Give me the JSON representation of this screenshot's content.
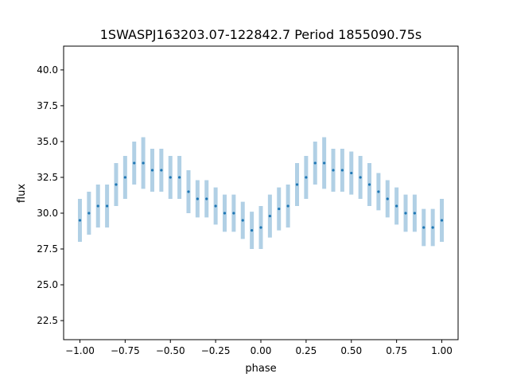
{
  "chart_data": {
    "type": "scatter",
    "title": "1SWASPJ163203.07-122842.7 Period 1855090.75s",
    "xlabel": "phase",
    "ylabel": "flux",
    "xlim": [
      -1.09,
      1.09
    ],
    "ylim": [
      21.17,
      41.66
    ],
    "xticks": [
      -1.0,
      -0.75,
      -0.5,
      -0.25,
      0.0,
      0.25,
      0.5,
      0.75,
      1.0
    ],
    "xtick_labels": [
      "−1.00",
      "−0.75",
      "−0.50",
      "−0.25",
      "0.00",
      "0.25",
      "0.50",
      "0.75",
      "1.00"
    ],
    "yticks": [
      22.5,
      25.0,
      27.5,
      30.0,
      32.5,
      35.0,
      37.5,
      40.0
    ],
    "ytick_labels": [
      "22.5",
      "25.0",
      "27.5",
      "30.0",
      "32.5",
      "35.0",
      "37.5",
      "40.0"
    ],
    "grid": false,
    "color": "#1f77b4",
    "series": [
      {
        "name": "flux",
        "x": [
          -1.0,
          -0.95,
          -0.9,
          -0.85,
          -0.8,
          -0.75,
          -0.7,
          -0.65,
          -0.6,
          -0.55,
          -0.5,
          -0.45,
          -0.4,
          -0.35,
          -0.3,
          -0.25,
          -0.2,
          -0.15,
          -0.1,
          -0.05,
          0.0,
          0.05,
          0.1,
          0.15,
          0.2,
          0.25,
          0.3,
          0.35,
          0.4,
          0.45,
          0.5,
          0.55,
          0.6,
          0.65,
          0.7,
          0.75,
          0.8,
          0.85,
          0.9,
          0.95,
          1.0
        ],
        "y": [
          29.5,
          30.0,
          30.5,
          30.5,
          32.0,
          32.5,
          33.5,
          33.5,
          33.0,
          33.0,
          32.5,
          32.5,
          31.5,
          31.0,
          31.0,
          30.5,
          30.0,
          30.0,
          29.5,
          28.8,
          29.0,
          29.8,
          30.3,
          30.5,
          32.0,
          32.5,
          33.5,
          33.5,
          33.0,
          33.0,
          32.8,
          32.5,
          32.0,
          31.5,
          31.0,
          30.5,
          30.0,
          30.0,
          29.0,
          29.0,
          29.5
        ],
        "spread": [
          1.5,
          1.5,
          1.5,
          1.5,
          1.5,
          1.5,
          1.5,
          1.8,
          1.5,
          1.5,
          1.5,
          1.5,
          1.5,
          1.3,
          1.3,
          1.3,
          1.3,
          1.3,
          1.3,
          1.3,
          1.5,
          1.5,
          1.5,
          1.5,
          1.5,
          1.5,
          1.5,
          1.8,
          1.5,
          1.5,
          1.5,
          1.5,
          1.5,
          1.3,
          1.3,
          1.3,
          1.3,
          1.3,
          1.3,
          1.3,
          1.5
        ]
      }
    ]
  }
}
